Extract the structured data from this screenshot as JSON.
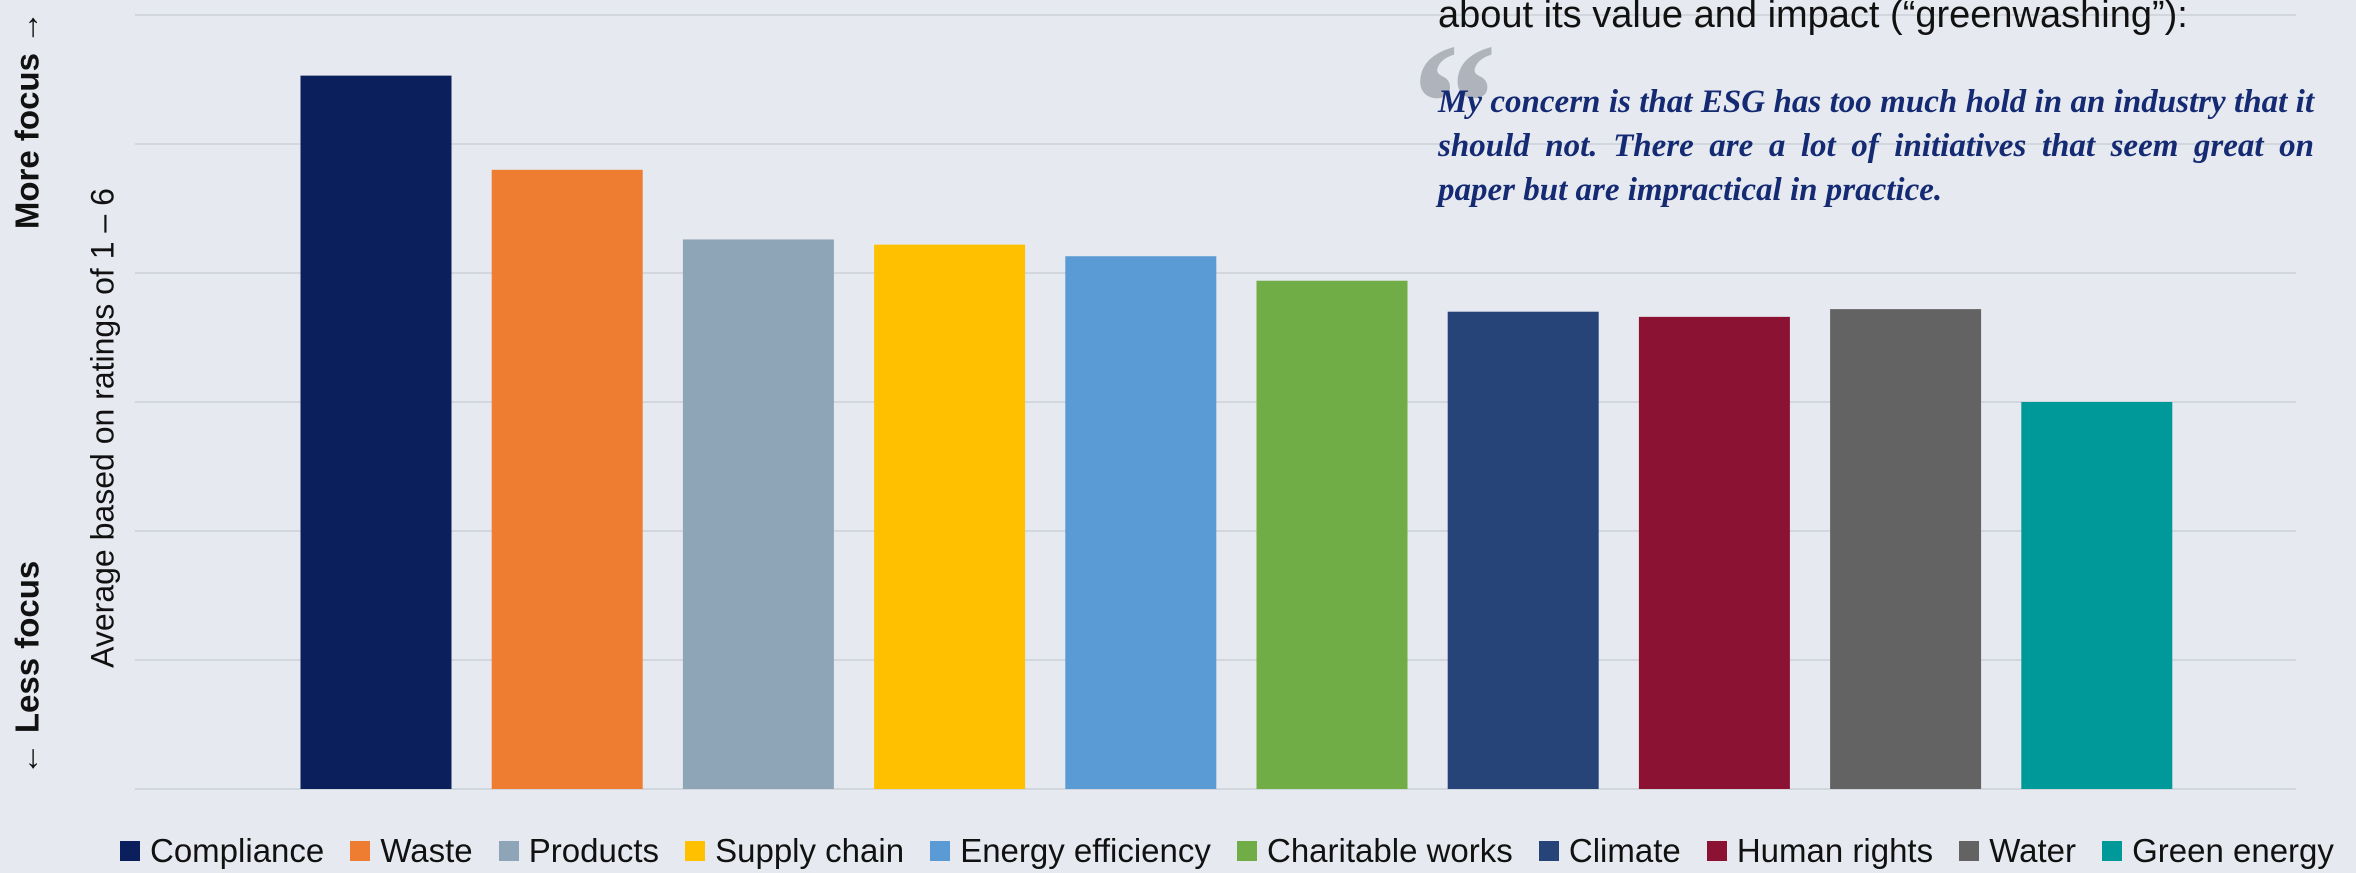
{
  "chart_data": {
    "type": "bar",
    "annotations": [
      "about its value and impact (“greenwashing”):",
      "“",
      "My concern is that ESG has too much hold in an industry that it should not. There are a lot of initiatives that seem great on paper but are impractical in practice."
    ],
    "ylabel": "Average based on ratings of 1 – 6",
    "ylabel_top": "More focus →",
    "ylabel_bottom": "← Less focus",
    "categories": [
      "Compliance",
      "Waste",
      "Products",
      "Supply chain",
      "Energy efficiency",
      "Charitable works",
      "Climate",
      "Human rights",
      "Water",
      "Green energy"
    ],
    "values": [
      5.53,
      4.8,
      4.26,
      4.22,
      4.13,
      3.94,
      3.7,
      3.66,
      3.72,
      3.0
    ],
    "colors": [
      "#0b1f5c",
      "#ee7d31",
      "#8ea5b8",
      "#ffc000",
      "#5b9bd5",
      "#70ad47",
      "#264478",
      "#8b1232",
      "#636363",
      "#00999a"
    ],
    "ylim": [
      0,
      6
    ],
    "yticks": [
      0,
      1,
      2,
      3,
      4,
      5,
      6
    ],
    "grid": true,
    "legend": "bottom"
  }
}
